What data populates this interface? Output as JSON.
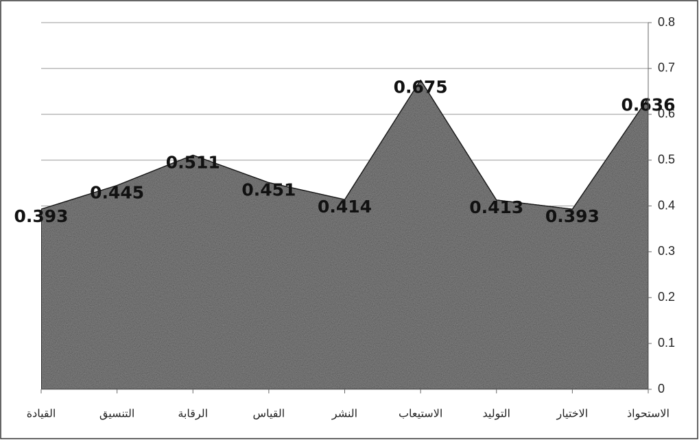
{
  "chart_data": {
    "type": "area",
    "categories": [
      "القيادة",
      "التنسيق",
      "الرقابة",
      "القياس",
      "النشر",
      "الاستيعاب",
      "التوليد",
      "الاختيار",
      "الاستحواذ"
    ],
    "values": [
      0.393,
      0.445,
      0.511,
      0.451,
      0.414,
      0.675,
      0.413,
      0.393,
      0.636
    ],
    "color": "#9a9a9a",
    "ylim": [
      0,
      0.8
    ],
    "yticks": [
      0,
      0.1,
      0.2,
      0.3,
      0.4,
      0.5,
      0.6,
      0.7,
      0.8
    ],
    "grid": true,
    "y_axis_side": "right"
  }
}
